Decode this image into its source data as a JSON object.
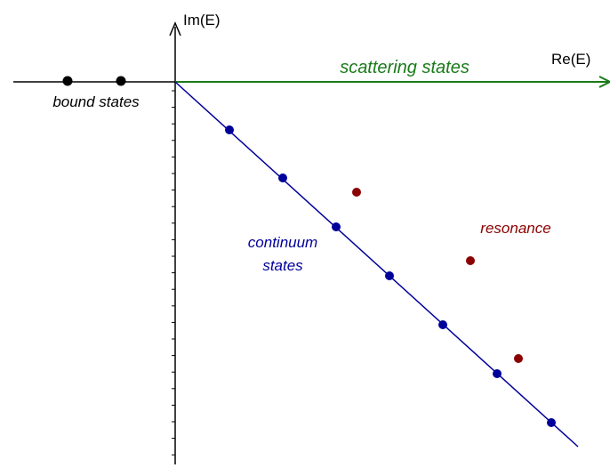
{
  "axes": {
    "y_label": "Im(E)",
    "x_label": "Re(E)"
  },
  "labels": {
    "scattering": "scattering states",
    "bound": "bound states",
    "resonance": "resonance",
    "continuum": [
      "continuum",
      "states"
    ]
  }
}
